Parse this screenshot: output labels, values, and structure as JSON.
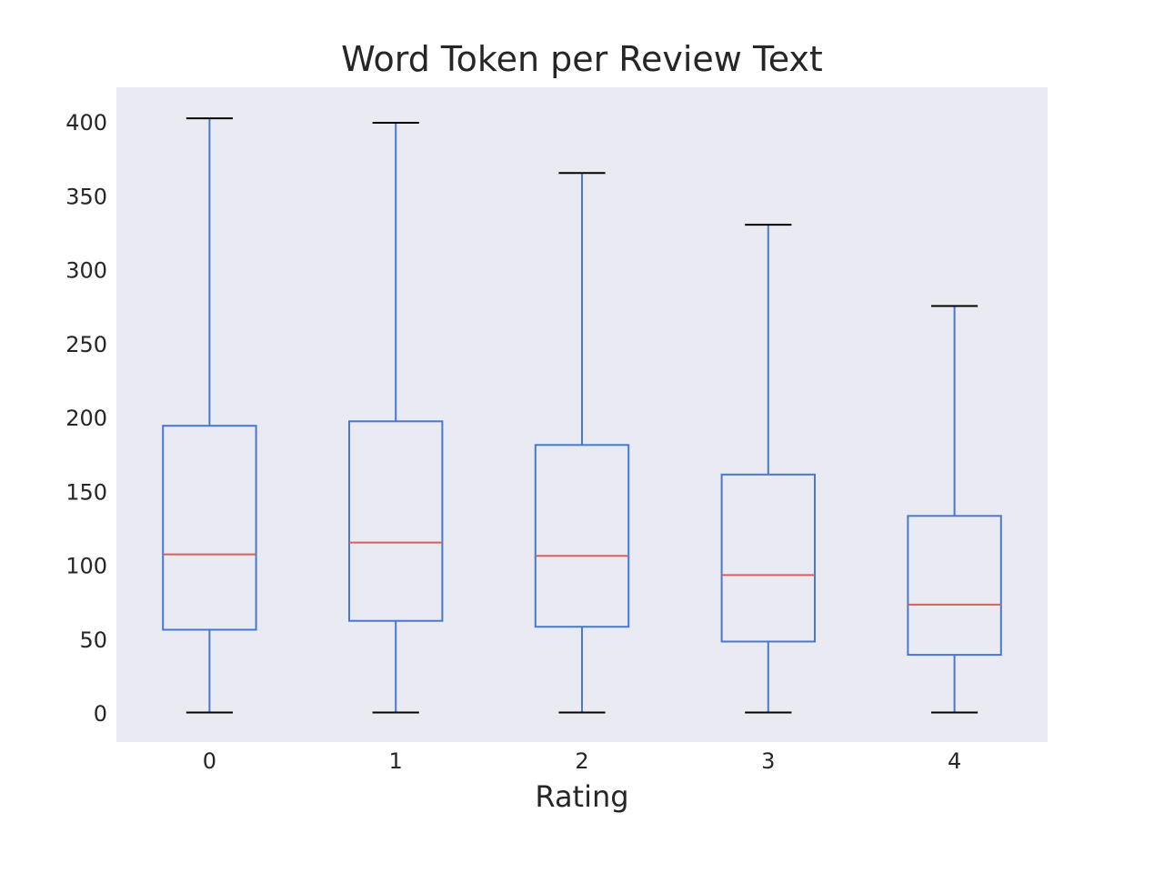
{
  "chart_data": {
    "type": "box",
    "title": "Word Token per Review Text",
    "xlabel": "Rating",
    "ylabel": "",
    "categories": [
      "0",
      "1",
      "2",
      "3",
      "4"
    ],
    "yticks": [
      "0",
      "50",
      "100",
      "150",
      "200",
      "250",
      "300",
      "350",
      "400"
    ],
    "ylim": [
      -19,
      424
    ],
    "grid": false,
    "boxes": [
      {
        "category": "0",
        "whisker_low": 1,
        "q1": 57,
        "median": 108,
        "q3": 195,
        "whisker_high": 403
      },
      {
        "category": "1",
        "whisker_low": 1,
        "q1": 63,
        "median": 116,
        "q3": 198,
        "whisker_high": 400
      },
      {
        "category": "2",
        "whisker_low": 1,
        "q1": 59,
        "median": 107,
        "q3": 182,
        "whisker_high": 366
      },
      {
        "category": "3",
        "whisker_low": 1,
        "q1": 49,
        "median": 94,
        "q3": 162,
        "whisker_high": 331
      },
      {
        "category": "4",
        "whisker_low": 1,
        "q1": 40,
        "median": 74,
        "q3": 134,
        "whisker_high": 276
      }
    ],
    "colors": {
      "plot_background": "#eaeaf2",
      "box": "#4878cf",
      "median": "#d65f5f",
      "caps": "#000000",
      "text": "#262626"
    }
  }
}
